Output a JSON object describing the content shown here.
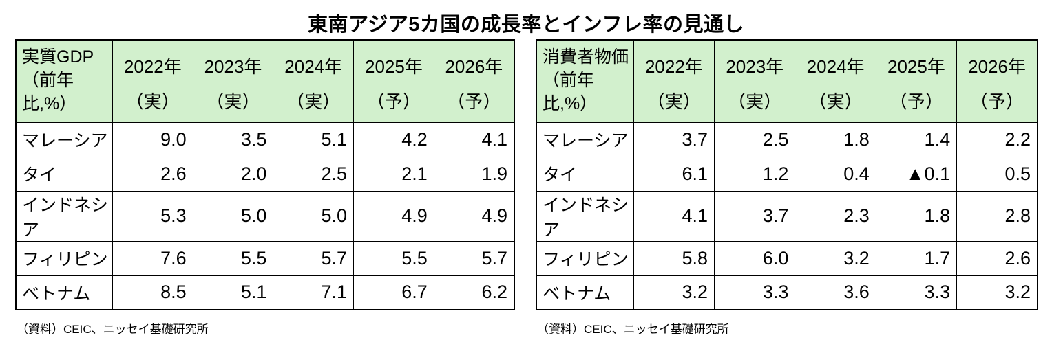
{
  "title": "東南アジア5カ国の成長率とインフレ率の見通し",
  "colors": {
    "header_bg": "#d2f0cd",
    "border": "#000000",
    "text": "#000000"
  },
  "chart_data": [
    {
      "type": "table",
      "header_title": "実質GDP",
      "header_subtitle": "（前年比,%）",
      "columns": [
        {
          "year": "2022年",
          "kind": "（実）"
        },
        {
          "year": "2023年",
          "kind": "（実）"
        },
        {
          "year": "2024年",
          "kind": "（実）"
        },
        {
          "year": "2025年",
          "kind": "（予）"
        },
        {
          "year": "2026年",
          "kind": "（予）"
        }
      ],
      "rows": [
        {
          "country": "マレーシア",
          "values": [
            "9.0",
            "3.5",
            "5.1",
            "4.2",
            "4.1"
          ]
        },
        {
          "country": "タイ",
          "values": [
            "2.6",
            "2.0",
            "2.5",
            "2.1",
            "1.9"
          ]
        },
        {
          "country": "インドネシア",
          "values": [
            "5.3",
            "5.0",
            "5.0",
            "4.9",
            "4.9"
          ]
        },
        {
          "country": "フィリピン",
          "values": [
            "7.6",
            "5.5",
            "5.7",
            "5.5",
            "5.7"
          ]
        },
        {
          "country": "ベトナム",
          "values": [
            "8.5",
            "5.1",
            "7.1",
            "6.7",
            "6.2"
          ]
        }
      ],
      "source": "（資料）CEIC、ニッセイ基礎研究所"
    },
    {
      "type": "table",
      "header_title": "消費者物価",
      "header_subtitle": "（前年比,%）",
      "columns": [
        {
          "year": "2022年",
          "kind": "（実）"
        },
        {
          "year": "2023年",
          "kind": "（実）"
        },
        {
          "year": "2024年",
          "kind": "（実）"
        },
        {
          "year": "2025年",
          "kind": "（予）"
        },
        {
          "year": "2026年",
          "kind": "（予）"
        }
      ],
      "rows": [
        {
          "country": "マレーシア",
          "values": [
            "3.7",
            "2.5",
            "1.8",
            "1.4",
            "2.2"
          ]
        },
        {
          "country": "タイ",
          "values": [
            "6.1",
            "1.2",
            "0.4",
            "▲0.1",
            "0.5"
          ]
        },
        {
          "country": "インドネシア",
          "values": [
            "4.1",
            "3.7",
            "2.3",
            "1.8",
            "2.8"
          ]
        },
        {
          "country": "フィリピン",
          "values": [
            "5.8",
            "6.0",
            "3.2",
            "1.7",
            "2.6"
          ]
        },
        {
          "country": "ベトナム",
          "values": [
            "3.2",
            "3.3",
            "3.6",
            "3.3",
            "3.2"
          ]
        }
      ],
      "source": "（資料）CEIC、ニッセイ基礎研究所"
    }
  ]
}
